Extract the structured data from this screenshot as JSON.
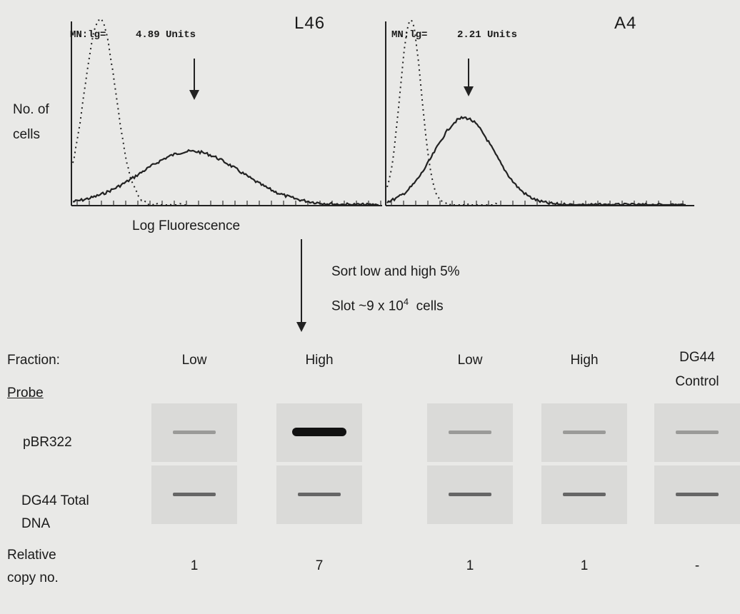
{
  "panels": [
    {
      "label": "L46",
      "mean_label": "MN:lg=",
      "mean_value": "4.89 Units"
    },
    {
      "label": "A4",
      "mean_label": "MN:lg=",
      "mean_value": "2.21 Units"
    }
  ],
  "y_axis_label": "No. of cells",
  "x_axis_label": "Log Fluorescence",
  "sort_text": "Sort low and high 5%",
  "slot_text": {
    "prefix": "Slot ~9 x 10",
    "exponent": "4",
    "suffix": "cells"
  },
  "table": {
    "fraction_label": "Fraction:",
    "fractions": [
      "Low",
      "High",
      "Low",
      "High",
      "DG44 Control"
    ],
    "probe_label": "Probe",
    "rows": [
      {
        "label": "pBR322"
      },
      {
        "label": "DG44 Total DNA"
      }
    ],
    "copy_label": "Relative copy no.",
    "copy_values": [
      1,
      7,
      1,
      1,
      "-"
    ]
  }
}
